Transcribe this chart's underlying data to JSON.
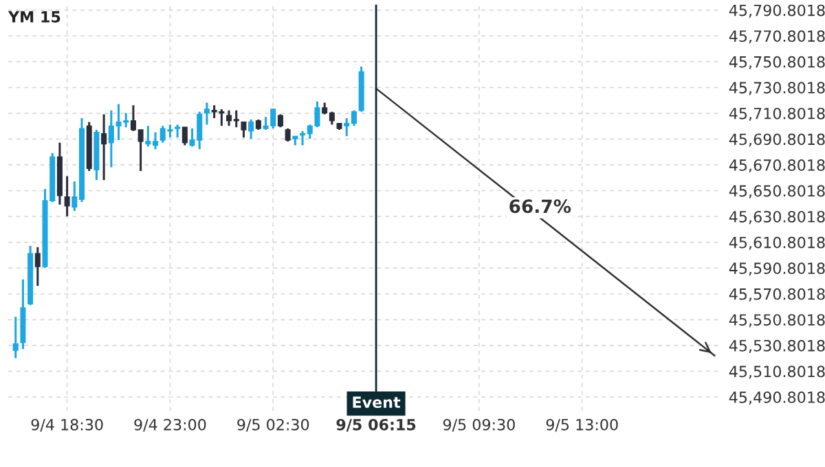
{
  "chart_data": {
    "type": "candlestick",
    "title": "YM 15",
    "categories": [
      null,
      null,
      null,
      null,
      null,
      null,
      null,
      "9/4 18:30",
      null,
      null,
      null,
      null,
      null,
      null,
      null,
      null,
      null,
      null,
      null,
      null,
      null,
      "9/4 23:00",
      null,
      null,
      null,
      null,
      null,
      null,
      null,
      null,
      null,
      null,
      null,
      null,
      null,
      "9/5 02:30",
      null,
      null,
      null,
      null,
      null,
      null,
      null,
      null,
      null,
      null,
      null,
      null,
      null,
      "9/5 06:15",
      null,
      null,
      null,
      null,
      null,
      null,
      null,
      null,
      null,
      null,
      null,
      null,
      null,
      "9/5 09:30",
      null,
      null,
      null,
      null,
      null,
      null,
      null,
      null,
      null,
      null,
      null,
      null,
      null,
      "9/5 13:00",
      null,
      null,
      null,
      null,
      null,
      null,
      null,
      null,
      null,
      null,
      null,
      null,
      null,
      null,
      null,
      null,
      null,
      null
    ],
    "ohlc": [
      [
        45527,
        45553,
        45521,
        45532
      ],
      [
        45533,
        45582,
        45528,
        45560
      ],
      [
        45563,
        45608,
        45562,
        45602
      ],
      [
        45602,
        45607,
        45577,
        45592
      ],
      [
        45592,
        45652,
        45591,
        45643
      ],
      [
        45643,
        45680,
        45642,
        45677
      ],
      [
        45677,
        45688,
        45640,
        45647
      ],
      [
        45646,
        45662,
        45631,
        45639
      ],
      [
        45638,
        45658,
        45635,
        45646
      ],
      [
        45644,
        45707,
        45642,
        45699
      ],
      [
        45701,
        45704,
        45666,
        45668
      ],
      [
        45667,
        45698,
        45659,
        45696
      ],
      [
        45695,
        45710,
        45659,
        45687
      ],
      [
        45688,
        45713,
        45669,
        45701
      ],
      [
        45701,
        45718,
        45690,
        45704
      ],
      [
        45704,
        45711,
        45700,
        45705
      ],
      [
        45705,
        45717,
        45697,
        45698
      ],
      [
        45698,
        45698,
        45666,
        45689
      ],
      [
        45687,
        45701,
        45685,
        45689
      ],
      [
        45686,
        45696,
        45683,
        45689
      ],
      [
        45690,
        45701,
        45688,
        45699
      ],
      [
        45697,
        45702,
        45692,
        45698
      ],
      [
        45699,
        45702,
        45692,
        45700
      ],
      [
        45700,
        45700,
        45686,
        45688
      ],
      [
        45686,
        45699,
        45685,
        45690
      ],
      [
        45690,
        45712,
        45683,
        45710
      ],
      [
        45711,
        45719,
        45702,
        45714
      ],
      [
        45713,
        45717,
        45707,
        45712
      ],
      [
        45712,
        45714,
        45701,
        45711
      ],
      [
        45709,
        45713,
        45701,
        45705
      ],
      [
        45706,
        45713,
        45700,
        45705
      ],
      [
        45704,
        45704,
        45692,
        45698
      ],
      [
        45697,
        45706,
        45691,
        45704
      ],
      [
        45705,
        45706,
        45698,
        45699
      ],
      [
        45699,
        45708,
        45698,
        45701
      ],
      [
        45701,
        45714,
        45699,
        45714
      ],
      [
        45709,
        45710,
        45700,
        45701
      ],
      [
        45698,
        45699,
        45689,
        45690
      ],
      [
        45691,
        45693,
        45686,
        45693
      ],
      [
        45694,
        45697,
        45686,
        45695
      ],
      [
        45695,
        45702,
        45691,
        45701
      ],
      [
        45701,
        45720,
        45700,
        45715
      ],
      [
        45715,
        45719,
        45710,
        45711
      ],
      [
        45711,
        45712,
        45702,
        45705
      ],
      [
        45703,
        45703,
        45698,
        45699
      ],
      [
        45701,
        45707,
        45693,
        45703
      ],
      [
        45703,
        45713,
        45701,
        45712
      ],
      [
        45713,
        45747,
        45712,
        45743
      ],
      null,
      null,
      null,
      null,
      null,
      null,
      null,
      null,
      null,
      null,
      null,
      null,
      null,
      null,
      null,
      null,
      null,
      null,
      null,
      null,
      null,
      null,
      null,
      null,
      null,
      null,
      null,
      null,
      null,
      null,
      null,
      null,
      null,
      null,
      null,
      null,
      null,
      null,
      null,
      null,
      null,
      null,
      null,
      null,
      null,
      null,
      null,
      null
    ],
    "colors": [
      "#1ea7e1",
      "#1ea7e1",
      "#1ea7e1",
      "#2b2d3a",
      "#1ea7e1",
      "#1ea7e1",
      "#2b2d3a",
      "#2b2d3a",
      "#1ea7e1",
      "#1ea7e1",
      "#2b2d3a",
      "#1ea7e1",
      "#2b2d3a",
      "#1ea7e1",
      "#1ea7e1",
      "#1ea7e1",
      "#2b2d3a",
      "#2b2d3a",
      "#1ea7e1",
      "#1ea7e1",
      "#1ea7e1",
      "#1ea7e1",
      "#1ea7e1",
      "#2b2d3a",
      "#1ea7e1",
      "#1ea7e1",
      "#1ea7e1",
      "#2b2d3a",
      "#2b2d3a",
      "#2b2d3a",
      "#2b2d3a",
      "#2b2d3a",
      "#1ea7e1",
      "#2b2d3a",
      "#1ea7e1",
      "#1ea7e1",
      "#2b2d3a",
      "#2b2d3a",
      "#1ea7e1",
      "#1ea7e1",
      "#1ea7e1",
      "#1ea7e1",
      "#2b2d3a",
      "#2b2d3a",
      "#2b2d3a",
      "#1ea7e1",
      "#1ea7e1",
      "#1ea7e1",
      null,
      null,
      null,
      null,
      null,
      null,
      null,
      null,
      null,
      null,
      null,
      null,
      null,
      null,
      null,
      null,
      null,
      null,
      null,
      null,
      null,
      null,
      null,
      null,
      null,
      null,
      null,
      null,
      null,
      null,
      null,
      null,
      null,
      null,
      null,
      null,
      null,
      null,
      null,
      null,
      null,
      null,
      null,
      null,
      null,
      null,
      null,
      null
    ],
    "series": [
      {
        "type": "line",
        "color": "#333333",
        "values": [
          null,
          null,
          null,
          null,
          null,
          null,
          null,
          null,
          null,
          null,
          null,
          null,
          null,
          null,
          null,
          null,
          null,
          null,
          null,
          null,
          null,
          null,
          null,
          null,
          null,
          null,
          null,
          null,
          null,
          null,
          null,
          null,
          null,
          null,
          null,
          null,
          null,
          null,
          null,
          null,
          null,
          null,
          null,
          null,
          null,
          null,
          null,
          null,
          null,
          45730,
          null,
          null,
          null,
          null,
          null,
          null,
          null,
          null,
          null,
          null,
          null,
          null,
          null,
          null,
          null,
          null,
          null,
          null,
          null,
          null,
          null,
          null,
          null,
          null,
          null,
          null,
          null,
          null,
          null,
          null,
          null,
          null,
          null,
          null,
          null,
          null,
          null,
          null,
          null,
          null,
          null,
          null,
          null,
          null,
          null,
          45523
        ]
      }
    ],
    "annotations": [
      "66.7%"
    ],
    "ref_lines": [
      {
        "axis": "x",
        "value": "9/5 06:15",
        "label": "Event",
        "color": "#0d2a33"
      }
    ],
    "ylim": [
      45480,
      45795
    ],
    "yticks": [
      {
        "value": 45490.8018,
        "label": "45,490.8018"
      },
      {
        "value": 45510.8018,
        "label": "45,510.8018"
      },
      {
        "value": 45530.8018,
        "label": "45,530.8018"
      },
      {
        "value": 45550.8018,
        "label": "45,550.8018"
      },
      {
        "value": 45570.8018,
        "label": "45,570.8018"
      },
      {
        "value": 45590.8018,
        "label": "45,590.8018"
      },
      {
        "value": 45610.8018,
        "label": "45,610.8018"
      },
      {
        "value": 45630.8018,
        "label": "45,630.8018"
      },
      {
        "value": 45650.8018,
        "label": "45,650.8018"
      },
      {
        "value": 45670.8018,
        "label": "45,670.8018"
      },
      {
        "value": 45690.8018,
        "label": "45,690.8018"
      },
      {
        "value": 45710.8018,
        "label": "45,710.8018"
      },
      {
        "value": 45730.8018,
        "label": "45,730.8018"
      },
      {
        "value": 45750.8018,
        "label": "45,750.8018"
      },
      {
        "value": 45770.8018,
        "label": "45,770.8018"
      },
      {
        "value": 45790.8018,
        "label": "45,790.8018"
      }
    ],
    "grid": true
  }
}
